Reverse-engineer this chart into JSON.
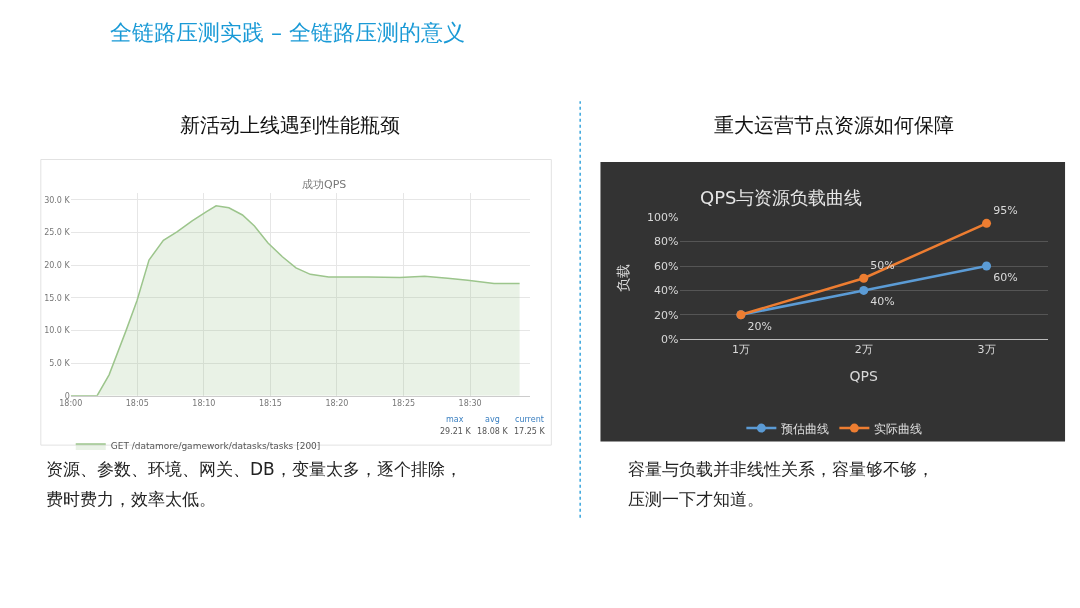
{
  "chart_data": [
    {
      "type": "area",
      "title": "成功QPS",
      "x": [
        18.0,
        18.033,
        18.048,
        18.069,
        18.083,
        18.098,
        18.116,
        18.133,
        18.152,
        18.17,
        18.182,
        18.198,
        18.215,
        18.23,
        18.247,
        18.265,
        18.282,
        18.3,
        18.323,
        18.372,
        18.412,
        18.443,
        18.472,
        18.497,
        18.53,
        18.562
      ],
      "series": [
        {
          "name": "GET /datamore/gamework/datasks/tasks [200]",
          "color": "#9cc58c",
          "values": [
            0,
            0,
            3.2,
            9.9,
            14.6,
            20.8,
            23.8,
            25.1,
            26.8,
            28.2,
            29.1,
            28.8,
            27.7,
            26.0,
            23.4,
            21.3,
            19.6,
            18.6,
            18.2,
            18.2,
            18.1,
            18.3,
            18.0,
            17.7,
            17.2,
            17.2
          ]
        }
      ],
      "xlim": [
        18.0,
        18.575
      ],
      "xticks": [
        {
          "value": 18.0,
          "label": "18:00"
        },
        {
          "value": 18.0833,
          "label": "18:05"
        },
        {
          "value": 18.1667,
          "label": "18:10"
        },
        {
          "value": 18.25,
          "label": "18:15"
        },
        {
          "value": 18.3333,
          "label": "18:20"
        },
        {
          "value": 18.4167,
          "label": "18:25"
        },
        {
          "value": 18.5,
          "label": "18:30"
        }
      ],
      "ylim": [
        0,
        31
      ],
      "yticks": [
        {
          "value": 0,
          "label": "0"
        },
        {
          "value": 5,
          "label": "5.0 K"
        },
        {
          "value": 10,
          "label": "10.0 K"
        },
        {
          "value": 15,
          "label": "15.0 K"
        },
        {
          "value": 20,
          "label": "20.0 K"
        },
        {
          "value": 25,
          "label": "25.0 K"
        },
        {
          "value": 30,
          "label": "30.0 K"
        }
      ],
      "grid": true,
      "legend": "bottom",
      "marker": "none",
      "line_style": "solid",
      "annotations": [
        "全链路压测实践 – 全链路压测的意义",
        "新活动上线遇到性能瓶颈",
        "资源、参数、环境、网关、DB，变量太多，逐个排除，",
        "费时费力，效率太低。",
        "max",
        "avg",
        "current",
        "29.21 K",
        "18.08 K",
        "17.25 K"
      ]
    },
    {
      "type": "line",
      "title": "QPS与资源负载曲线",
      "xlabel": "QPS",
      "ylabel": "负载",
      "categories": [
        "1万",
        "2万",
        "3万"
      ],
      "series": [
        {
          "name": "预估曲线",
          "color": "#5b9bd5",
          "values": [
            20,
            40,
            60
          ],
          "value_labels": [
            "20%",
            "40%",
            "60%"
          ]
        },
        {
          "name": "实际曲线",
          "color": "#ed7d31",
          "values": [
            20,
            50,
            95
          ],
          "value_labels": [
            null,
            "50%",
            "95%"
          ]
        }
      ],
      "ylim": [
        0,
        100
      ],
      "yticks": [
        {
          "value": 0,
          "label": "0%"
        },
        {
          "value": 20,
          "label": "20%"
        },
        {
          "value": 40,
          "label": "40%"
        },
        {
          "value": 60,
          "label": "60%"
        },
        {
          "value": 80,
          "label": "80%"
        },
        {
          "value": 100,
          "label": "100%"
        }
      ],
      "grid": "y",
      "legend": "bottom",
      "marker": "circle",
      "line_style": "solid",
      "annotations": [
        "重大运营节点资源如何保障",
        "容量与负载并非线性关系，容量够不够，",
        "压测一下才知道。"
      ]
    }
  ]
}
